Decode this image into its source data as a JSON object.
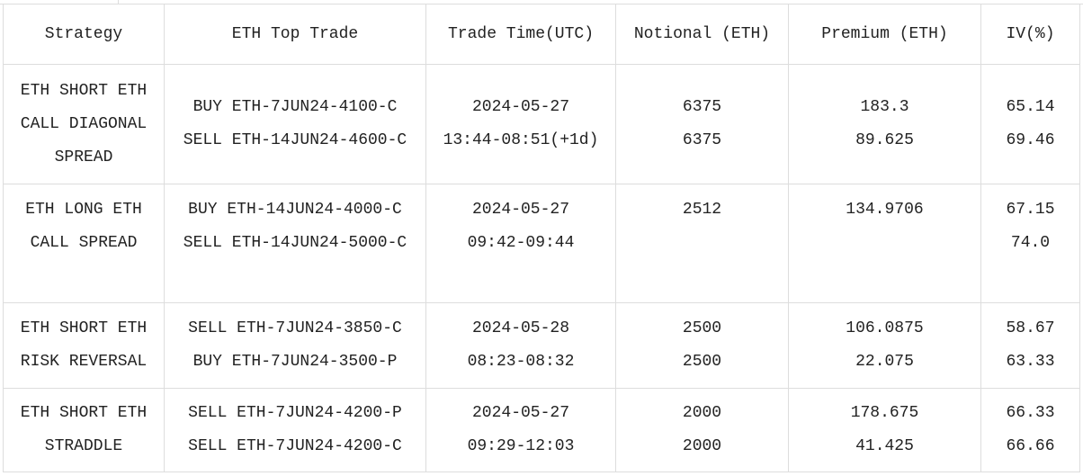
{
  "headers": [
    "Strategy",
    "ETH Top Trade",
    "Trade Time(UTC)",
    "Notional (ETH)",
    "Premium (ETH)",
    "IV(%)"
  ],
  "rows": [
    {
      "strategy": [
        "ETH SHORT ETH",
        "CALL DIAGONAL",
        "SPREAD"
      ],
      "trade": [
        "BUY ETH-7JUN24-4100-C",
        "SELL ETH-14JUN24-4600-C"
      ],
      "time": [
        "2024-05-27",
        "13:44-08:51(+1d)"
      ],
      "notional": [
        "6375",
        "6375"
      ],
      "premium": [
        "183.3",
        "89.625"
      ],
      "iv": [
        "65.14",
        "69.46"
      ]
    },
    {
      "strategy": [
        "ETH LONG ETH",
        "CALL SPREAD"
      ],
      "trade": [
        "BUY ETH-14JUN24-4000-C",
        "SELL ETH-14JUN24-5000-C"
      ],
      "time": [
        "2024-05-27",
        "09:42-09:44"
      ],
      "notional": [
        "2512"
      ],
      "premium": [
        "134.9706"
      ],
      "iv": [
        "67.15",
        "74.0"
      ]
    },
    {
      "strategy": [
        "ETH SHORT ETH",
        "RISK REVERSAL"
      ],
      "trade": [
        "SELL ETH-7JUN24-3850-C",
        "BUY ETH-7JUN24-3500-P"
      ],
      "time": [
        "2024-05-28",
        "08:23-08:32"
      ],
      "notional": [
        "2500",
        "2500"
      ],
      "premium": [
        "106.0875",
        "22.075"
      ],
      "iv": [
        "58.67",
        "63.33"
      ]
    },
    {
      "strategy": [
        "ETH SHORT ETH",
        "STRADDLE"
      ],
      "trade": [
        "SELL ETH-7JUN24-4200-P",
        "SELL ETH-7JUN24-4200-C"
      ],
      "time": [
        "2024-05-27",
        "09:29-12:03"
      ],
      "notional": [
        "2000",
        "2000"
      ],
      "premium": [
        "178.675",
        "41.425"
      ],
      "iv": [
        "66.33",
        "66.66"
      ]
    }
  ]
}
